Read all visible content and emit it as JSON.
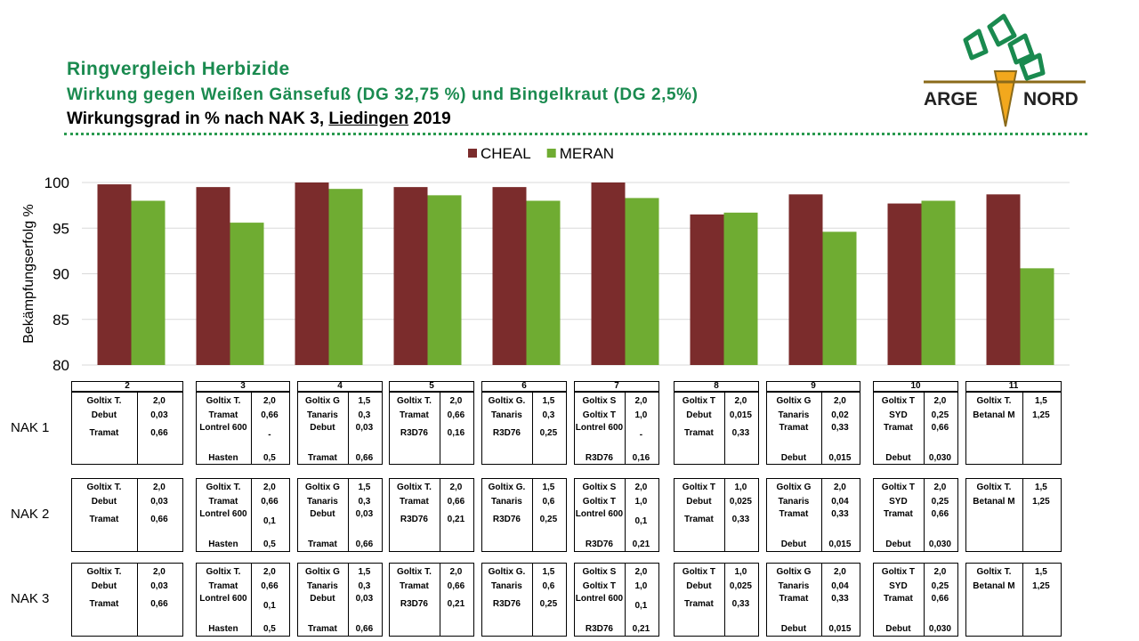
{
  "header": {
    "title": "Ringvergleich Herbizide",
    "subtitle": "Wirkung gegen Weißen Gänsefuß (DG 32,75 %) und Bingelkraut (DG 2,5%)",
    "line3": [
      "Wirkungsgrad in % nach NAK 3, ",
      "Liedingen",
      " 2019"
    ]
  },
  "logo": [
    "ARGE",
    "NORD"
  ],
  "chart_data": {
    "type": "bar",
    "ylabel": "Bekämpfungserfolg %",
    "categories": [
      "2",
      "3",
      "4",
      "5",
      "6",
      "7",
      "8",
      "9",
      "10",
      "11"
    ],
    "series": [
      {
        "name": "CHEAL",
        "color": "#7b2c2c",
        "values": [
          99.8,
          99.5,
          100,
          99.5,
          99.5,
          100,
          96.5,
          98.7,
          97.7,
          98.7
        ]
      },
      {
        "name": "MERAN",
        "color": "#6fac32",
        "values": [
          98.0,
          95.6,
          99.3,
          98.6,
          98.0,
          98.3,
          96.7,
          94.6,
          98.0,
          90.6
        ]
      }
    ],
    "ylim": [
      80,
      100
    ],
    "yticks": [
      80,
      85,
      90,
      95,
      100
    ],
    "grid": true,
    "legend": "top"
  },
  "nak_labels": [
    "NAK 1",
    "NAK 2",
    "NAK 3"
  ],
  "tables": [
    [
      [
        [
          "Goltix T.",
          "2,0"
        ],
        [
          "Debut",
          "0,03"
        ],
        [
          "Tramat",
          "0,66"
        ]
      ],
      [
        [
          "Goltix T.",
          "2,0"
        ],
        [
          "Debut",
          "0,03"
        ],
        [
          "Tramat",
          "0,66"
        ]
      ],
      [
        [
          "Goltix T.",
          "2,0"
        ],
        [
          "Debut",
          "0,03"
        ],
        [
          "Tramat",
          "0,66"
        ]
      ]
    ],
    [
      [
        [
          "Goltix T.",
          "2,0"
        ],
        [
          "Tramat",
          "0,66"
        ],
        [
          "Lontrel 600",
          "-"
        ],
        [
          "Hasten",
          "0,5"
        ]
      ],
      [
        [
          "Goltix T.",
          "2,0"
        ],
        [
          "Tramat",
          "0,66"
        ],
        [
          "Lontrel 600",
          "0,1"
        ],
        [
          "Hasten",
          "0,5"
        ]
      ],
      [
        [
          "Goltix T.",
          "2,0"
        ],
        [
          "Tramat",
          "0,66"
        ],
        [
          "Lontrel 600",
          "0,1"
        ],
        [
          "Hasten",
          "0,5"
        ]
      ]
    ],
    [
      [
        [
          "Goltix G",
          "1,5"
        ],
        [
          "Tanaris",
          "0,3"
        ],
        [
          "Debut",
          "0,03"
        ],
        [
          "Tramat",
          "0,66"
        ]
      ],
      [
        [
          "Goltix G",
          "1,5"
        ],
        [
          "Tanaris",
          "0,3"
        ],
        [
          "Debut",
          "0,03"
        ],
        [
          "Tramat",
          "0,66"
        ]
      ],
      [
        [
          "Goltix G",
          "1,5"
        ],
        [
          "Tanaris",
          "0,3"
        ],
        [
          "Debut",
          "0,03"
        ],
        [
          "Tramat",
          "0,66"
        ]
      ]
    ],
    [
      [
        [
          "Goltix T.",
          "2,0"
        ],
        [
          "Tramat",
          "0,66"
        ],
        [
          "R3D76",
          "0,16"
        ]
      ],
      [
        [
          "Goltix T.",
          "2,0"
        ],
        [
          "Tramat",
          "0,66"
        ],
        [
          "R3D76",
          "0,21"
        ]
      ],
      [
        [
          "Goltix T.",
          "2,0"
        ],
        [
          "Tramat",
          "0,66"
        ],
        [
          "R3D76",
          "0,21"
        ]
      ]
    ],
    [
      [
        [
          "Goltix G.",
          "1,5"
        ],
        [
          "Tanaris",
          "0,3"
        ],
        [
          "R3D76",
          "0,25"
        ]
      ],
      [
        [
          "Goltix G.",
          "1,5"
        ],
        [
          "Tanaris",
          "0,6"
        ],
        [
          "R3D76",
          "0,25"
        ]
      ],
      [
        [
          "Goltix G.",
          "1,5"
        ],
        [
          "Tanaris",
          "0,6"
        ],
        [
          "R3D76",
          "0,25"
        ]
      ]
    ],
    [
      [
        [
          "Goltix S",
          "2,0"
        ],
        [
          "Goltix T",
          "1,0"
        ],
        [
          "Lontrel 600",
          "-"
        ],
        [
          "R3D76",
          "0,16"
        ]
      ],
      [
        [
          "Goltix S",
          "2,0"
        ],
        [
          "Goltix T",
          "1,0"
        ],
        [
          "Lontrel 600",
          "0,1"
        ],
        [
          "R3D76",
          "0,21"
        ]
      ],
      [
        [
          "Goltix S",
          "2,0"
        ],
        [
          "Goltix T",
          "1,0"
        ],
        [
          "Lontrel 600",
          "0,1"
        ],
        [
          "R3D76",
          "0,21"
        ]
      ]
    ],
    [
      [
        [
          "Goltix T",
          "2,0"
        ],
        [
          "Debut",
          "0,015"
        ],
        [
          "Tramat",
          "0,33"
        ]
      ],
      [
        [
          "Goltix T",
          "1,0"
        ],
        [
          "Debut",
          "0,025"
        ],
        [
          "Tramat",
          "0,33"
        ]
      ],
      [
        [
          "Goltix T",
          "1,0"
        ],
        [
          "Debut",
          "0,025"
        ],
        [
          "Tramat",
          "0,33"
        ]
      ]
    ],
    [
      [
        [
          "Goltix G",
          "2,0"
        ],
        [
          "Tanaris",
          "0,02"
        ],
        [
          "Tramat",
          "0,33"
        ],
        [
          "Debut",
          "0,015"
        ]
      ],
      [
        [
          "Goltix G",
          "2,0"
        ],
        [
          "Tanaris",
          "0,04"
        ],
        [
          "Tramat",
          "0,33"
        ],
        [
          "Debut",
          "0,015"
        ]
      ],
      [
        [
          "Goltix G",
          "2,0"
        ],
        [
          "Tanaris",
          "0,04"
        ],
        [
          "Tramat",
          "0,33"
        ],
        [
          "Debut",
          "0,015"
        ]
      ]
    ],
    [
      [
        [
          "Goltix T",
          "2,0"
        ],
        [
          "SYD",
          "0,25"
        ],
        [
          "Tramat",
          "0,66"
        ],
        [
          "Debut",
          "0,030"
        ]
      ],
      [
        [
          "Goltix T",
          "2,0"
        ],
        [
          "SYD",
          "0,25"
        ],
        [
          "Tramat",
          "0,66"
        ],
        [
          "Debut",
          "0,030"
        ]
      ],
      [
        [
          "Goltix T",
          "2,0"
        ],
        [
          "SYD",
          "0,25"
        ],
        [
          "Tramat",
          "0,66"
        ],
        [
          "Debut",
          "0,030"
        ]
      ]
    ],
    [
      [
        [
          "Goltix T.",
          "1,5"
        ],
        [
          "Betanal M",
          "1,25"
        ]
      ],
      [
        [
          "Goltix T.",
          "1,5"
        ],
        [
          "Betanal M",
          "1,25"
        ]
      ],
      [
        [
          "Goltix T.",
          "1,5"
        ],
        [
          "Betanal M",
          "1,25"
        ]
      ]
    ]
  ]
}
